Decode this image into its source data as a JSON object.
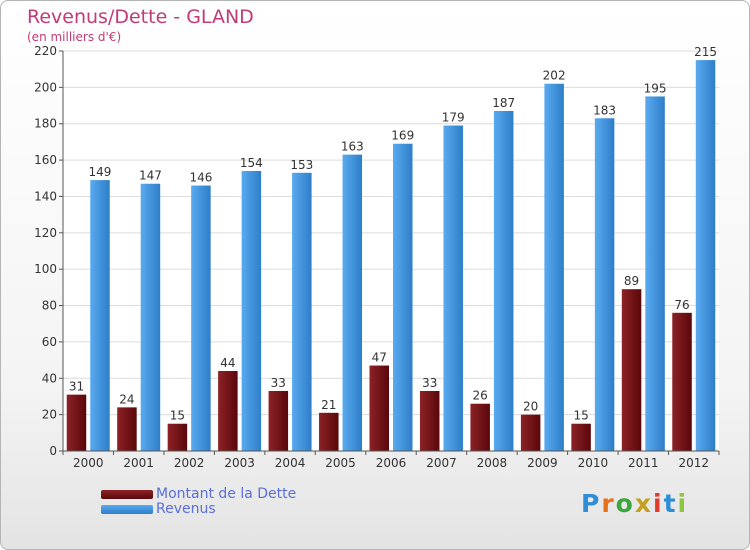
{
  "chart_data": {
    "type": "bar",
    "title": "Revenus/Dette - GLAND",
    "subtitle": "(en milliers d'€)",
    "categories": [
      "2000",
      "2001",
      "2002",
      "2003",
      "2004",
      "2005",
      "2006",
      "2007",
      "2008",
      "2009",
      "2010",
      "2011",
      "2012"
    ],
    "series": [
      {
        "name": "Montant de la Dette",
        "color": "#7a1014",
        "values": [
          31,
          24,
          15,
          44,
          33,
          21,
          47,
          33,
          26,
          20,
          15,
          89,
          76
        ]
      },
      {
        "name": "Revenus",
        "color": "#3d94df",
        "values": [
          149,
          147,
          146,
          154,
          153,
          163,
          169,
          179,
          187,
          202,
          183,
          195,
          215
        ]
      }
    ],
    "ylim": [
      0,
      220
    ],
    "yticks": [
      0,
      20,
      40,
      60,
      80,
      100,
      120,
      140,
      160,
      180,
      200,
      220
    ],
    "grid": true,
    "legend_position": "bottom-left"
  },
  "brand": {
    "text": "Proxiti",
    "letter_colors": [
      "#2e8fd8",
      "#e8721c",
      "#3aa63c",
      "#c4a020",
      "#e03a2a",
      "#2e8fd8",
      "#8dc63f"
    ]
  }
}
